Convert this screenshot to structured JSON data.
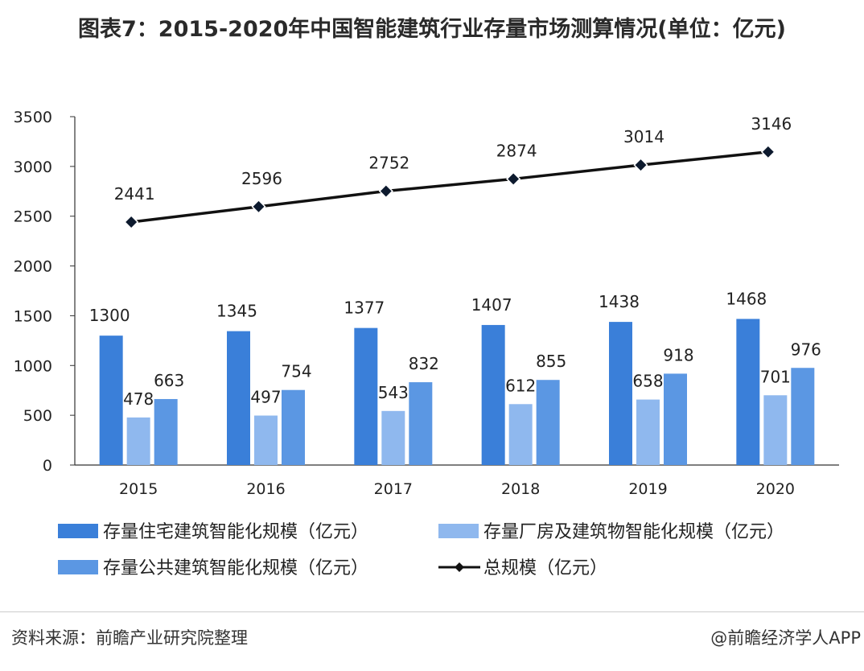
{
  "title": "图表7：2015-2020年中国智能建筑行业存量市场测算情况(单位：亿元)",
  "source": "资料来源：前瞻产业研究院整理",
  "brand": "@前瞻经济学人APP",
  "chart_data": {
    "type": "bar",
    "title": "图表7：2015-2020年中国智能建筑行业存量市场测算情况(单位：亿元)",
    "categories": [
      "2015",
      "2016",
      "2017",
      "2018",
      "2019",
      "2020"
    ],
    "ylim": [
      0,
      3500
    ],
    "yticks": [
      0,
      500,
      1000,
      1500,
      2000,
      2500,
      3000,
      3500
    ],
    "grid": false,
    "legend_position": "bottom",
    "series": [
      {
        "name": "存量住宅建筑智能化规模（亿元）",
        "type": "bar",
        "color": "#3a7fd9",
        "values": [
          1300,
          1345,
          1377,
          1407,
          1438,
          1468
        ]
      },
      {
        "name": "存量厂房及建筑物智能化规模（亿元）",
        "type": "bar",
        "color": "#8fb8ee",
        "values": [
          478,
          497,
          543,
          612,
          658,
          701
        ]
      },
      {
        "name": "存量公共建筑智能化规模（亿元）",
        "type": "bar",
        "color": "#5b97e3",
        "values": [
          663,
          754,
          832,
          855,
          918,
          976
        ]
      },
      {
        "name": "总规模（亿元）",
        "type": "line",
        "color": "#111111",
        "marker": "diamond",
        "values": [
          2441,
          2596,
          2752,
          2874,
          3014,
          3146
        ]
      }
    ]
  }
}
